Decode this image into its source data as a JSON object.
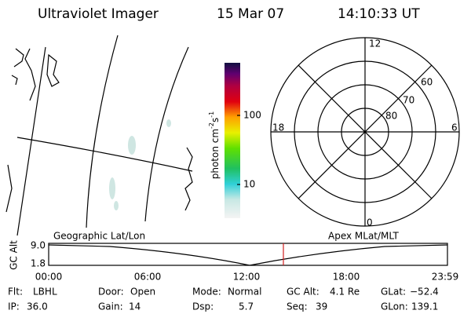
{
  "header": {
    "title": "Ultraviolet Imager",
    "date": "15 Mar 07",
    "time": "14:10:33 UT"
  },
  "colorbar": {
    "label": "photon cm",
    "exp1": "-2",
    "unit2": "s",
    "exp2": "-1",
    "ticks": [
      "100",
      "10"
    ]
  },
  "polar": {
    "mlt_labels": [
      "12",
      "18",
      "6",
      "0"
    ],
    "lat_labels": [
      "60",
      "70",
      "80"
    ]
  },
  "timeline": {
    "left_title": "Geographic Lat/Lon",
    "right_title": "Apex MLat/MLT",
    "axis_label": "GC Alt",
    "yticks": [
      "9.0",
      "1.8"
    ],
    "xticks": [
      "00:00",
      "06:00",
      "12:00",
      "18:00",
      "23:59"
    ]
  },
  "status": {
    "rows": [
      [
        {
          "label": "Flt:",
          "value": "LBHL"
        },
        {
          "label": "Door:",
          "value": "Open"
        },
        {
          "label": "Mode:",
          "value": "Normal"
        },
        {
          "label": "GC Alt:",
          "value": "4.1 Re"
        },
        {
          "label": "GLat:",
          "value": "−52.4"
        }
      ],
      [
        {
          "label": "IP:",
          "value": "36.0"
        },
        {
          "label": "Gain:",
          "value": "14"
        },
        {
          "label": "Dsp:",
          "value": "5.7"
        },
        {
          "label": "Seq:",
          "value": "39"
        },
        {
          "label": "GLon:",
          "value": "139.1"
        }
      ]
    ]
  }
}
